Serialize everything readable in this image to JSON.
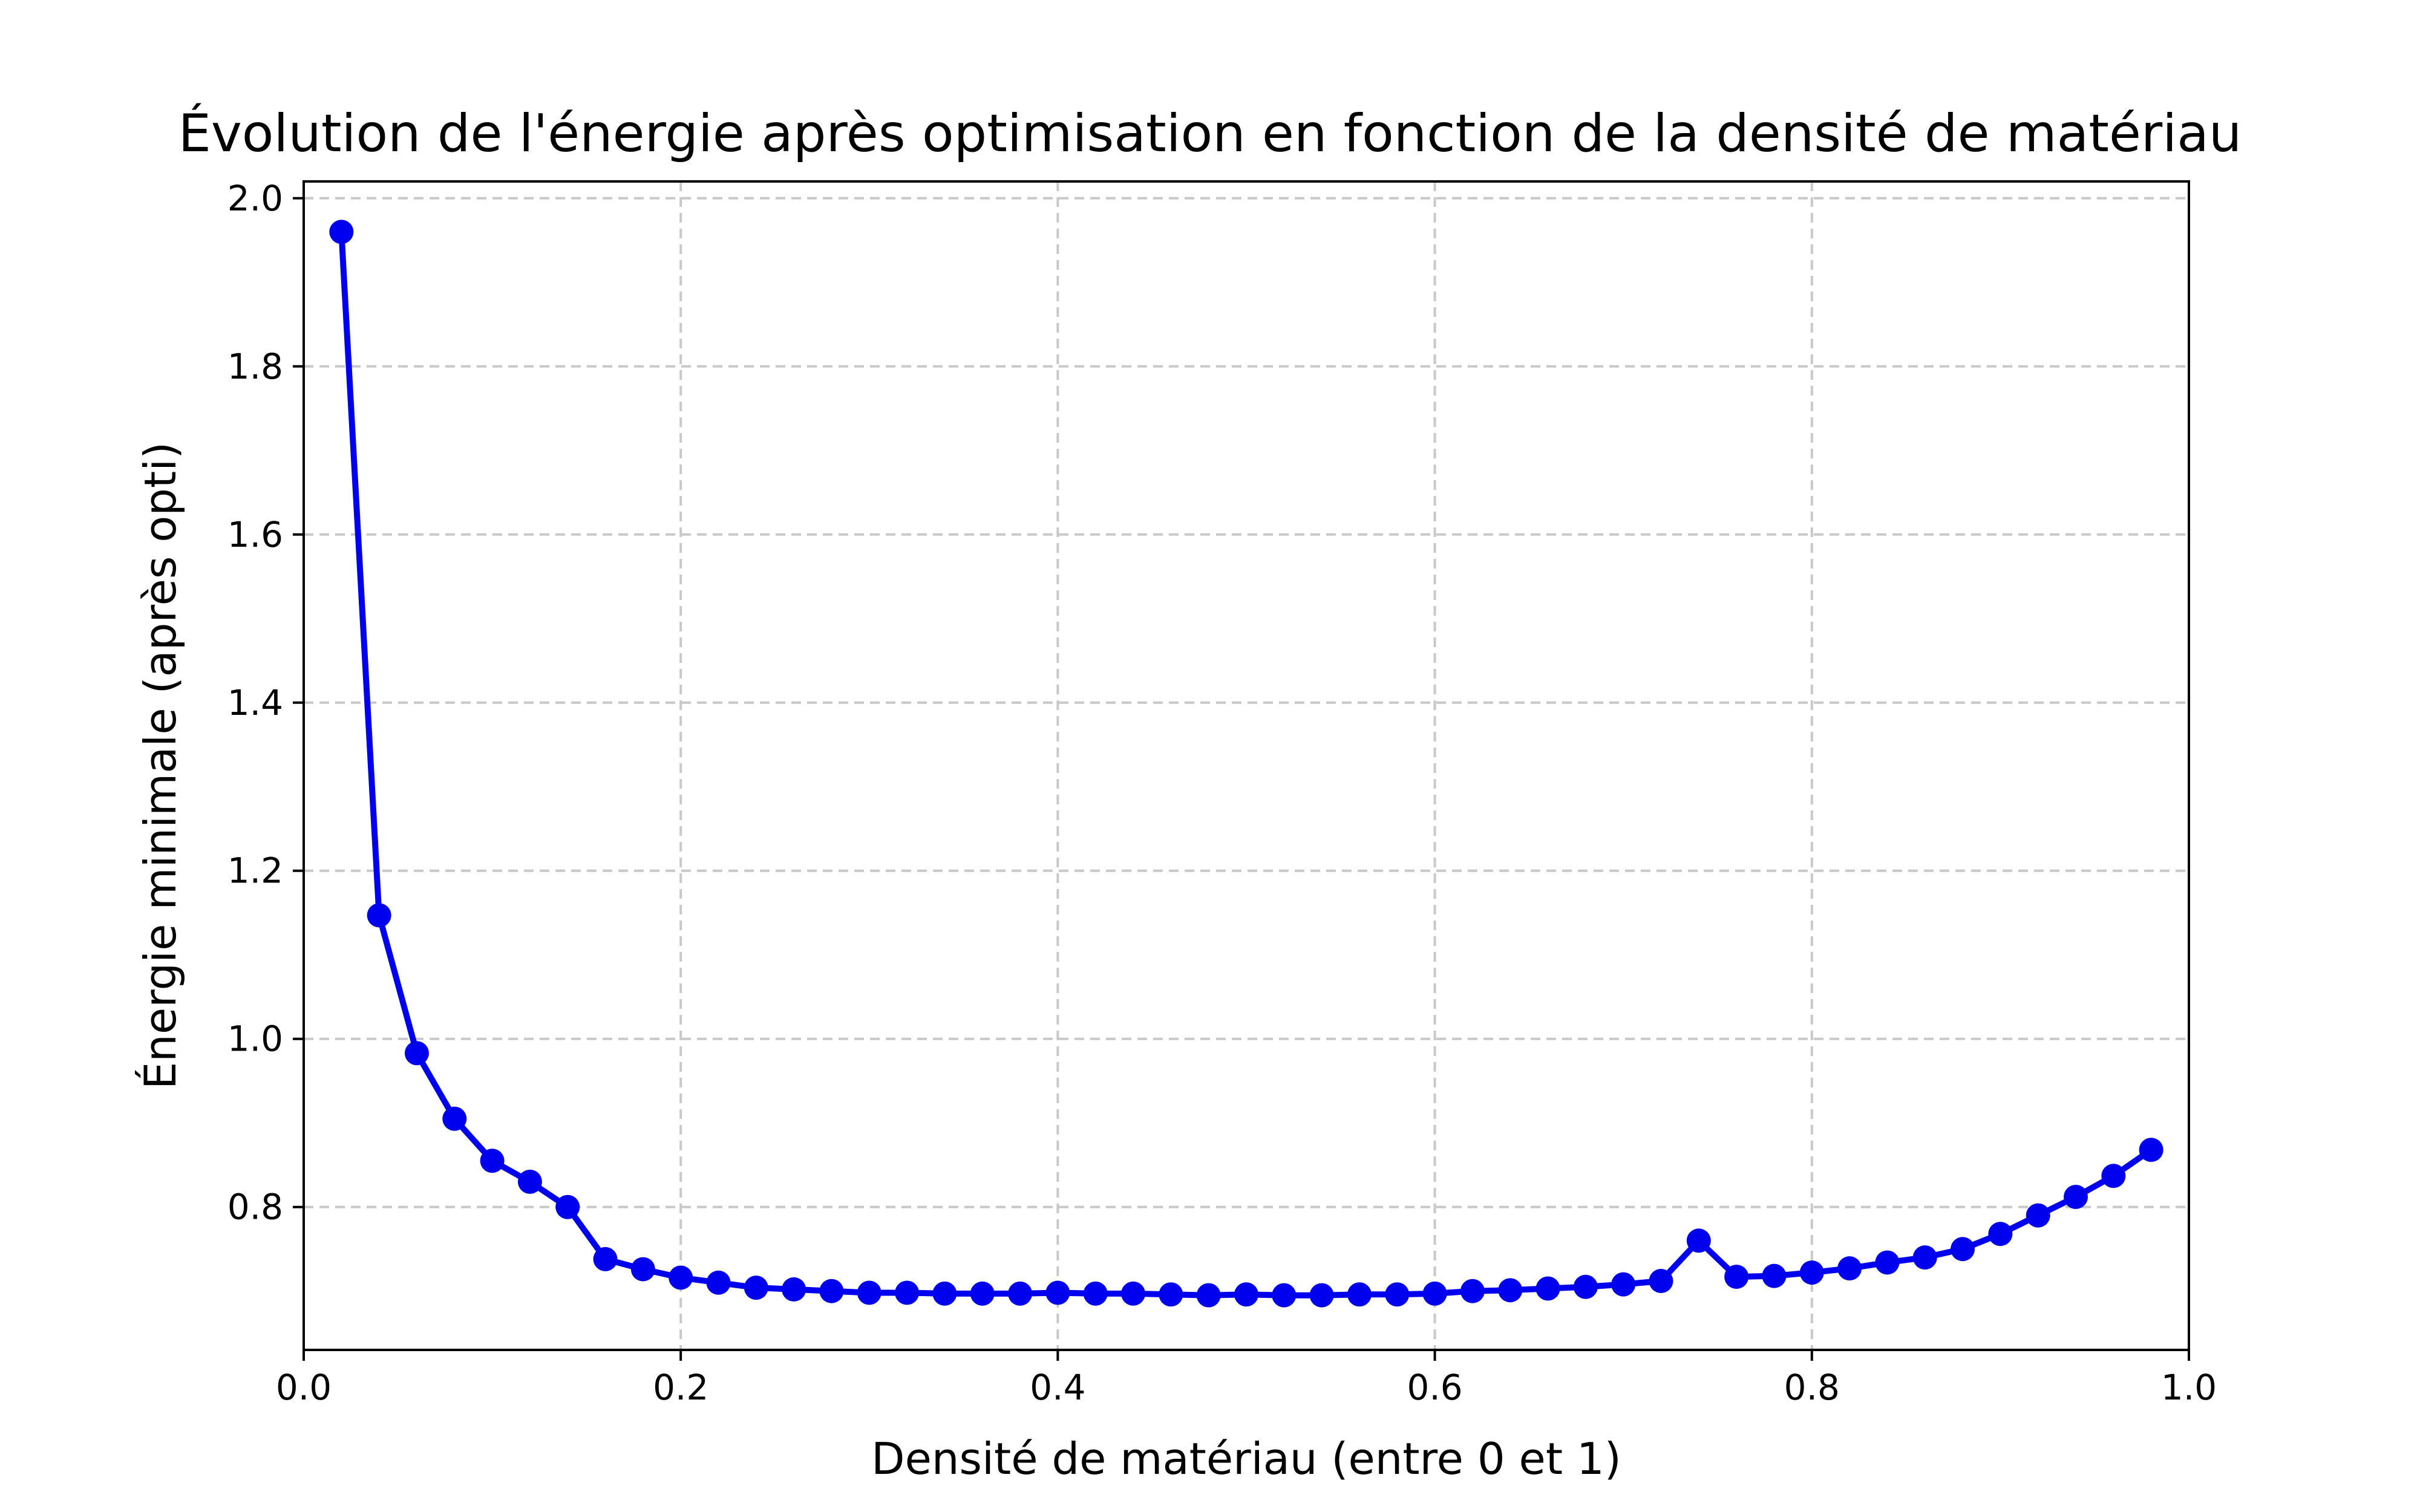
{
  "chart_data": {
    "type": "line",
    "title": "Évolution de l'énergie après optimisation en fonction de la densité de matériau",
    "xlabel": "Densité de matériau (entre 0 et 1)",
    "ylabel": "Énergie minimale (après opti)",
    "xlim": [
      0.0,
      1.0
    ],
    "ylim": [
      0.63,
      2.02
    ],
    "xticks": [
      0.0,
      0.2,
      0.4,
      0.6,
      0.8,
      1.0
    ],
    "xtick_labels": [
      "0.0",
      "0.2",
      "0.4",
      "0.6",
      "0.8",
      "1.0"
    ],
    "yticks": [
      0.8,
      1.0,
      1.2,
      1.4,
      1.6,
      1.8,
      2.0
    ],
    "ytick_labels": [
      "0.8",
      "1.0",
      "1.2",
      "1.4",
      "1.6",
      "1.8",
      "2.0"
    ],
    "grid": true,
    "color": "#0000ee",
    "series": [
      {
        "x": [
          0.02,
          0.04,
          0.06,
          0.08,
          0.1,
          0.12,
          0.14,
          0.16,
          0.18,
          0.2,
          0.22,
          0.24,
          0.26,
          0.28,
          0.3,
          0.32,
          0.34,
          0.36,
          0.38,
          0.4,
          0.42,
          0.44,
          0.46,
          0.48,
          0.5,
          0.52,
          0.54,
          0.56,
          0.58,
          0.6,
          0.62,
          0.64,
          0.66,
          0.68,
          0.7,
          0.72,
          0.74,
          0.76,
          0.78,
          0.8,
          0.82,
          0.84,
          0.86,
          0.88,
          0.9,
          0.92,
          0.94,
          0.96,
          0.98
        ],
        "values": [
          1.96,
          1.147,
          0.983,
          0.905,
          0.855,
          0.83,
          0.8,
          0.738,
          0.726,
          0.716,
          0.71,
          0.704,
          0.702,
          0.7,
          0.698,
          0.698,
          0.697,
          0.697,
          0.697,
          0.698,
          0.697,
          0.697,
          0.696,
          0.695,
          0.696,
          0.695,
          0.695,
          0.696,
          0.696,
          0.697,
          0.7,
          0.701,
          0.703,
          0.705,
          0.708,
          0.712,
          0.76,
          0.717,
          0.718,
          0.722,
          0.727,
          0.734,
          0.74,
          0.75,
          0.768,
          0.79,
          0.812,
          0.837,
          0.868
        ]
      }
    ]
  }
}
